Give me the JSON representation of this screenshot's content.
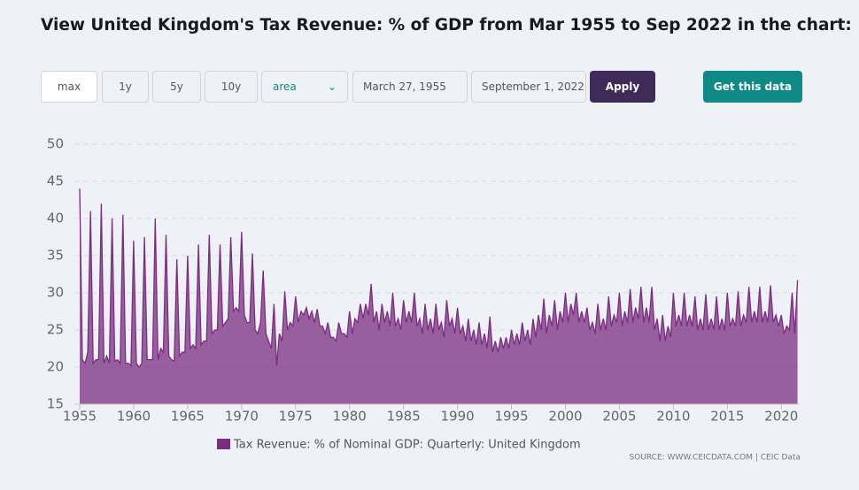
{
  "header": {
    "title": "View United Kingdom's Tax Revenue: % of GDP from Mar 1955 to Sep 2022 in the chart:"
  },
  "controls": {
    "range_buttons": [
      "max",
      "1y",
      "5y",
      "10y"
    ],
    "chart_type": "area",
    "start_date": "March 27, 1955",
    "end_date": "September 1, 2022",
    "apply": "Apply",
    "get_data": "Get this data"
  },
  "chart_data": {
    "type": "area",
    "source": "SOURCE: WWW.CEICDATA.COM | CEIC Data",
    "xlim": [
      1955,
      2021.7
    ],
    "xticks": [
      1955,
      1960,
      1965,
      1970,
      1975,
      1980,
      1985,
      1990,
      1995,
      2000,
      2005,
      2010,
      2015,
      2020
    ],
    "ylim": [
      15,
      50
    ],
    "yticks": [
      15,
      20,
      25,
      30,
      35,
      40,
      45,
      50
    ],
    "grid": true,
    "x": [
      1955,
      1955.25,
      1955.5,
      1955.75,
      1956,
      1956.25,
      1956.5,
      1956.75,
      1957,
      1957.25,
      1957.5,
      1957.75,
      1958,
      1958.25,
      1958.5,
      1958.75,
      1959,
      1959.25,
      1959.5,
      1959.75,
      1960,
      1960.25,
      1960.5,
      1960.75,
      1961,
      1961.25,
      1961.5,
      1961.75,
      1962,
      1962.25,
      1962.5,
      1962.75,
      1963,
      1963.25,
      1963.5,
      1963.75,
      1964,
      1964.25,
      1964.5,
      1964.75,
      1965,
      1965.25,
      1965.5,
      1965.75,
      1966,
      1966.25,
      1966.5,
      1966.75,
      1967,
      1967.25,
      1967.5,
      1967.75,
      1968,
      1968.25,
      1968.5,
      1968.75,
      1969,
      1969.25,
      1969.5,
      1969.75,
      1970,
      1970.25,
      1970.5,
      1970.75,
      1971,
      1971.25,
      1971.5,
      1971.75,
      1972,
      1972.25,
      1972.5,
      1972.75,
      1973,
      1973.25,
      1973.5,
      1973.75,
      1974,
      1974.25,
      1974.5,
      1974.75,
      1975,
      1975.25,
      1975.5,
      1975.75,
      1976,
      1976.25,
      1976.5,
      1976.75,
      1977,
      1977.25,
      1977.5,
      1977.75,
      1978,
      1978.25,
      1978.5,
      1978.75,
      1979,
      1979.25,
      1979.5,
      1979.75,
      1980,
      1980.25,
      1980.5,
      1980.75,
      1981,
      1981.25,
      1981.5,
      1981.75,
      1982,
      1982.25,
      1982.5,
      1982.75,
      1983,
      1983.25,
      1983.5,
      1983.75,
      1984,
      1984.25,
      1984.5,
      1984.75,
      1985,
      1985.25,
      1985.5,
      1985.75,
      1986,
      1986.25,
      1986.5,
      1986.75,
      1987,
      1987.25,
      1987.5,
      1987.75,
      1988,
      1988.25,
      1988.5,
      1988.75,
      1989,
      1989.25,
      1989.5,
      1989.75,
      1990,
      1990.25,
      1990.5,
      1990.75,
      1991,
      1991.25,
      1991.5,
      1991.75,
      1992,
      1992.25,
      1992.5,
      1992.75,
      1993,
      1993.25,
      1993.5,
      1993.75,
      1994,
      1994.25,
      1994.5,
      1994.75,
      1995,
      1995.25,
      1995.5,
      1995.75,
      1996,
      1996.25,
      1996.5,
      1996.75,
      1997,
      1997.25,
      1997.5,
      1997.75,
      1998,
      1998.25,
      1998.5,
      1998.75,
      1999,
      1999.25,
      1999.5,
      1999.75,
      2000,
      2000.25,
      2000.5,
      2000.75,
      2001,
      2001.25,
      2001.5,
      2001.75,
      2002,
      2002.25,
      2002.5,
      2002.75,
      2003,
      2003.25,
      2003.5,
      2003.75,
      2004,
      2004.25,
      2004.5,
      2004.75,
      2005,
      2005.25,
      2005.5,
      2005.75,
      2006,
      2006.25,
      2006.5,
      2006.75,
      2007,
      2007.25,
      2007.5,
      2007.75,
      2008,
      2008.25,
      2008.5,
      2008.75,
      2009,
      2009.25,
      2009.5,
      2009.75,
      2010,
      2010.25,
      2010.5,
      2010.75,
      2011,
      2011.25,
      2011.5,
      2011.75,
      2012,
      2012.25,
      2012.5,
      2012.75,
      2013,
      2013.25,
      2013.5,
      2013.75,
      2014,
      2014.25,
      2014.5,
      2014.75,
      2015,
      2015.25,
      2015.5,
      2015.75,
      2016,
      2016.25,
      2016.5,
      2016.75,
      2017,
      2017.25,
      2017.5,
      2017.75,
      2018,
      2018.25,
      2018.5,
      2018.75,
      2019,
      2019.25,
      2019.5,
      2019.75,
      2020,
      2020.25,
      2020.5,
      2020.75,
      2021,
      2021.25,
      2021.5
    ],
    "series": [
      {
        "name": "Tax Revenue: % of Nominal GDP: Quarterly: United Kingdom",
        "color": "#7b2d80",
        "values": [
          44,
          21,
          20.5,
          22,
          41,
          20.5,
          21,
          21,
          42,
          20.5,
          21.5,
          20.5,
          40,
          20.8,
          21,
          20.5,
          40.5,
          20.5,
          20.5,
          20.2,
          37,
          20.5,
          20,
          20.5,
          37.5,
          21,
          21,
          21,
          40,
          21,
          22.5,
          22,
          37.8,
          21.5,
          21,
          20.8,
          34.5,
          21.5,
          22,
          22,
          35,
          22.5,
          23,
          22.5,
          36.5,
          23,
          23.5,
          23.5,
          37.8,
          24.5,
          25,
          25,
          36.5,
          25.5,
          26,
          26.5,
          37.5,
          27.5,
          28,
          27.5,
          38.2,
          27,
          26,
          26,
          35.3,
          25,
          24.5,
          26,
          33,
          24.5,
          23.5,
          22.5,
          28.5,
          20.2,
          24.5,
          23.5,
          30.2,
          25,
          26,
          25.5,
          29.5,
          26,
          27.5,
          27,
          28,
          26.5,
          27.5,
          26,
          27.8,
          25.5,
          25.5,
          24.5,
          26,
          24,
          24,
          23.5,
          26,
          24.5,
          24.5,
          24,
          27.5,
          24.5,
          26.5,
          26,
          28.5,
          26.5,
          28.5,
          27,
          31.2,
          26,
          27.5,
          25,
          28.5,
          26,
          27.5,
          25.5,
          30,
          25.5,
          26.5,
          25,
          29,
          26,
          27.5,
          26,
          30,
          25.5,
          26.5,
          24.5,
          28.5,
          25,
          26.5,
          24.5,
          28.5,
          25,
          26,
          24,
          29,
          25.5,
          26.5,
          24.5,
          28,
          24.5,
          25.5,
          23.5,
          26.5,
          23.5,
          25,
          23,
          26,
          23,
          24.5,
          22.5,
          26.8,
          22,
          23.5,
          22,
          24,
          22.5,
          24,
          22.5,
          25,
          23,
          24.5,
          23,
          26,
          23.5,
          25,
          23,
          26.5,
          24,
          27,
          25,
          29.2,
          24.5,
          27,
          25.5,
          29,
          25,
          27.5,
          26,
          30,
          26,
          28.5,
          27,
          30,
          26,
          27.5,
          26,
          28,
          25,
          26,
          24.5,
          28.5,
          25,
          26.5,
          25,
          29.5,
          25.5,
          27,
          26,
          30,
          25.5,
          27.5,
          26,
          30.5,
          26,
          28,
          26.5,
          30.8,
          26,
          28,
          26,
          30.8,
          25,
          26.5,
          23.5,
          27,
          23.5,
          25.5,
          24,
          30,
          25.5,
          27,
          25.5,
          30,
          25.5,
          27,
          25.5,
          29.5,
          25,
          26.5,
          25,
          29.8,
          25,
          26.5,
          25,
          29.5,
          25,
          26.5,
          25,
          30,
          25.5,
          26.5,
          25.5,
          30.2,
          25.5,
          27,
          26,
          30.8,
          26,
          27.5,
          26,
          30.8,
          26,
          27.5,
          26,
          31,
          26,
          27,
          25.5,
          27,
          24.5,
          25.5,
          25,
          30,
          24.5,
          31.7
        ]
      }
    ]
  }
}
